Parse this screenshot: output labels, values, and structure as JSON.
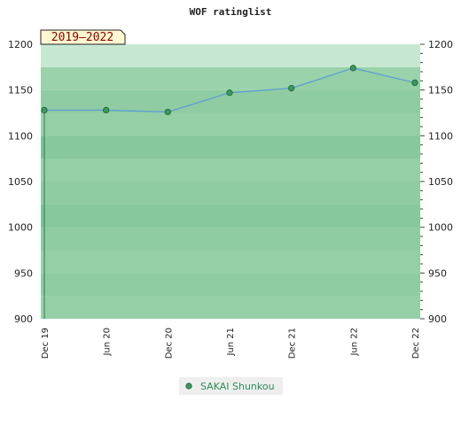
{
  "chart_data": {
    "type": "area",
    "title": "WOF ratinglist",
    "period_label": "2019–2022",
    "xlabel": "",
    "ylabel": "",
    "ylim": [
      900,
      1200
    ],
    "yticks": [
      900,
      950,
      1000,
      1050,
      1100,
      1150,
      1200
    ],
    "x": [
      "Dec 19",
      "Jun 20",
      "Dec 20",
      "Jun 21",
      "Dec 21",
      "Jun 22",
      "Dec 22"
    ],
    "series": [
      {
        "name": "SAKAI Shunkou",
        "values": [
          1128,
          1128,
          1126,
          1147,
          1152,
          1174,
          1158
        ],
        "color": "#2e8b57"
      }
    ],
    "legend_position": "bottom-center",
    "colors": {
      "line": "#5b9bd5",
      "area": "#8fcca3",
      "marker": "#3a9a5c",
      "band_dark": "#7dc495",
      "band_light": "#a4d7b3"
    }
  }
}
